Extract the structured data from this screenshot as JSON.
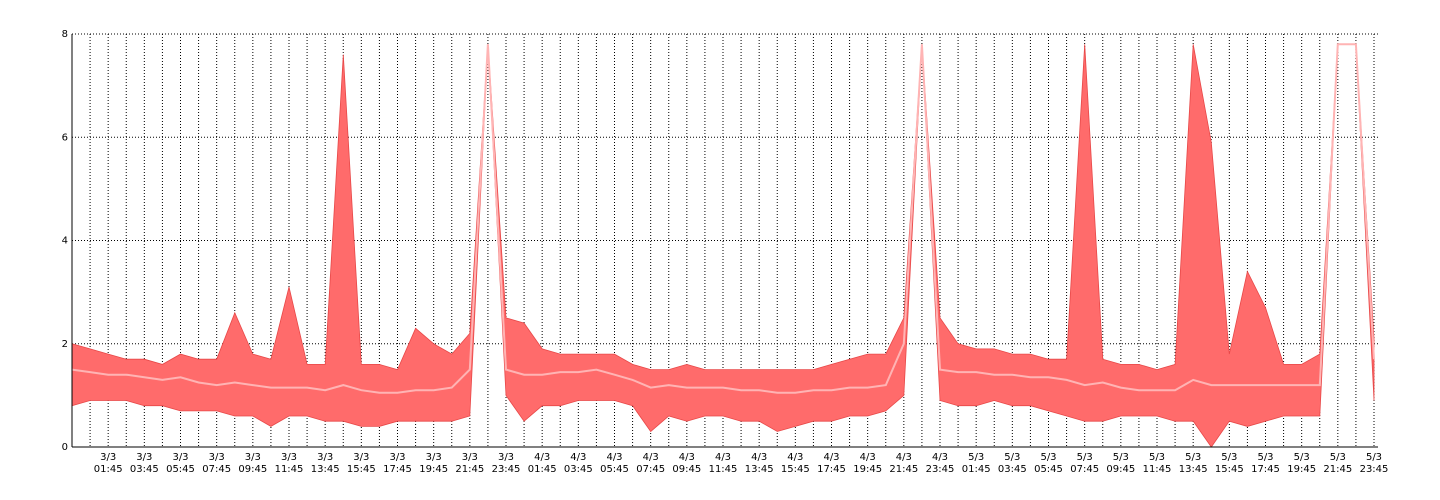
{
  "chart_data": {
    "type": "band",
    "categories": [
      null,
      null,
      "3/3\n01:45",
      null,
      "3/3\n03:45",
      null,
      "3/3\n05:45",
      null,
      "3/3\n07:45",
      null,
      "3/3\n09:45",
      null,
      "3/3\n11:45",
      null,
      "3/3\n13:45",
      null,
      "3/3\n15:45",
      null,
      "3/3\n17:45",
      null,
      "3/3\n19:45",
      null,
      "3/3\n21:45",
      null,
      "3/3\n23:45",
      null,
      "4/3\n01:45",
      null,
      "4/3\n03:45",
      null,
      "4/3\n05:45",
      null,
      "4/3\n07:45",
      null,
      "4/3\n09:45",
      null,
      "4/3\n11:45",
      null,
      "4/3\n13:45",
      null,
      "4/3\n15:45",
      null,
      "4/3\n17:45",
      null,
      "4/3\n19:45",
      null,
      "4/3\n21:45",
      null,
      "4/3\n23:45",
      null,
      "5/3\n01:45",
      null,
      "5/3\n03:45",
      null,
      "5/3\n05:45",
      null,
      "5/3\n07:45",
      null,
      "5/3\n09:45",
      null,
      "5/3\n11:45",
      null,
      "5/3\n13:45",
      null,
      "5/3\n15:45",
      null,
      "5/3\n17:45",
      null,
      "5/3\n19:45",
      null,
      "5/3\n21:45",
      null,
      "5/3\n23:45"
    ],
    "high": [
      2.0,
      1.9,
      1.8,
      1.7,
      1.7,
      1.6,
      1.8,
      1.7,
      1.7,
      2.6,
      1.8,
      1.7,
      3.1,
      1.6,
      1.6,
      7.6,
      1.6,
      1.6,
      1.5,
      2.3,
      2.0,
      1.8,
      2.2,
      7.8,
      2.5,
      2.4,
      1.9,
      1.8,
      1.8,
      1.8,
      1.8,
      1.6,
      1.5,
      1.5,
      1.6,
      1.5,
      1.5,
      1.5,
      1.5,
      1.5,
      1.5,
      1.5,
      1.6,
      1.7,
      1.8,
      1.8,
      2.5,
      7.8,
      2.5,
      2.0,
      1.9,
      1.9,
      1.8,
      1.8,
      1.7,
      1.7,
      7.8,
      1.7,
      1.6,
      1.6,
      1.5,
      1.6,
      7.8,
      5.9,
      1.8,
      3.4,
      2.7,
      1.6,
      1.6,
      1.8,
      7.8,
      7.8,
      2.1
    ],
    "low": [
      0.8,
      0.9,
      0.9,
      0.9,
      0.8,
      0.8,
      0.7,
      0.7,
      0.7,
      0.6,
      0.6,
      0.4,
      0.6,
      0.6,
      0.5,
      0.5,
      0.4,
      0.4,
      0.5,
      0.5,
      0.5,
      0.5,
      0.6,
      7.8,
      1.0,
      0.5,
      0.8,
      0.8,
      0.9,
      0.9,
      0.9,
      0.8,
      0.3,
      0.6,
      0.5,
      0.6,
      0.6,
      0.5,
      0.5,
      0.3,
      0.4,
      0.5,
      0.5,
      0.6,
      0.6,
      0.7,
      1.0,
      7.8,
      0.9,
      0.8,
      0.8,
      0.9,
      0.8,
      0.8,
      0.7,
      0.6,
      0.5,
      0.5,
      0.6,
      0.6,
      0.6,
      0.5,
      0.5,
      0.0,
      0.5,
      0.4,
      0.5,
      0.6,
      0.6,
      0.6,
      7.8,
      7.8,
      0.9
    ],
    "mean": [
      1.5,
      1.45,
      1.4,
      1.4,
      1.35,
      1.3,
      1.35,
      1.25,
      1.2,
      1.25,
      1.2,
      1.15,
      1.15,
      1.15,
      1.1,
      1.2,
      1.1,
      1.05,
      1.05,
      1.1,
      1.1,
      1.15,
      1.5,
      7.8,
      1.5,
      1.4,
      1.4,
      1.45,
      1.45,
      1.5,
      1.4,
      1.3,
      1.15,
      1.2,
      1.15,
      1.15,
      1.15,
      1.1,
      1.1,
      1.05,
      1.05,
      1.1,
      1.1,
      1.15,
      1.15,
      1.2,
      2.0,
      7.8,
      1.5,
      1.45,
      1.45,
      1.4,
      1.4,
      1.35,
      1.35,
      1.3,
      1.2,
      1.25,
      1.15,
      1.1,
      1.1,
      1.1,
      1.3,
      1.2,
      1.2,
      1.2,
      1.2,
      1.2,
      1.2,
      1.2,
      7.8,
      7.8,
      1.7
    ],
    "band_color": "#ff6b6b",
    "edge_color": "#e84848",
    "mean_color": "#ffb4b4",
    "ylim": [
      0,
      8
    ],
    "yticks": [
      0,
      2,
      4,
      6,
      8
    ],
    "grid": true
  }
}
